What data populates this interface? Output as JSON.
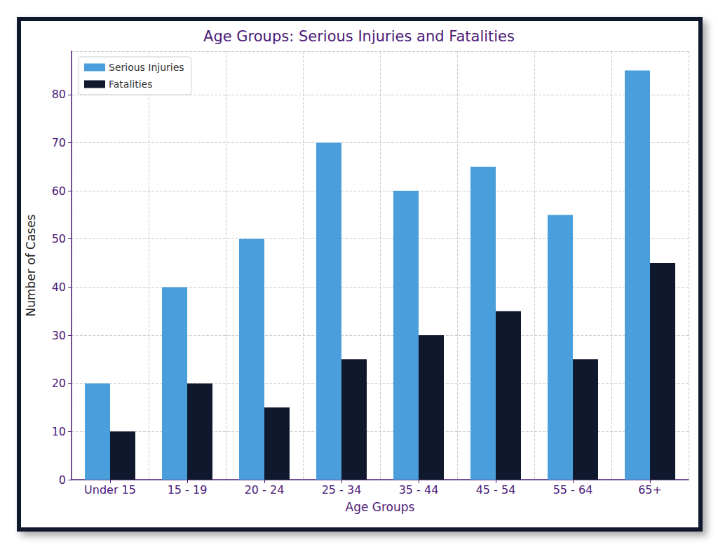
{
  "chart_data": {
    "type": "bar",
    "title": "Age Groups: Serious Injuries and Fatalities",
    "x_label": "Age Groups",
    "y_label": "Number of Cases",
    "categories": [
      "Under 15",
      "15 - 19",
      "20 - 24",
      "25 - 34",
      "35 - 44",
      "45 - 54",
      "55 - 64",
      "65+"
    ],
    "series": [
      {
        "name": "Serious Injuries",
        "color": "#4a9edb",
        "values": [
          20,
          40,
          50,
          70,
          60,
          65,
          55,
          85
        ]
      },
      {
        "name": "Fatalities",
        "color": "#0f182d",
        "values": [
          10,
          20,
          15,
          25,
          30,
          35,
          25,
          45
        ]
      }
    ],
    "ylim": [
      0,
      89
    ],
    "yticks": [
      0,
      10,
      20,
      30,
      40,
      50,
      60,
      70,
      80
    ],
    "grid": true,
    "legend": "upper left"
  }
}
